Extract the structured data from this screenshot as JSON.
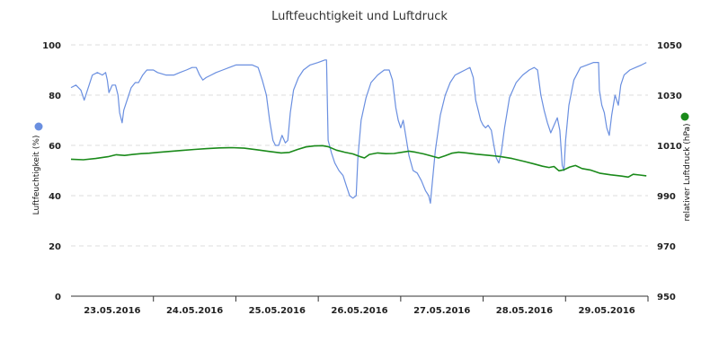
{
  "chart_data": {
    "type": "line",
    "title": "Luftfeuchtigkeit und Luftdruck",
    "x_tick_labels": [
      "23.05.2016",
      "24.05.2016",
      "25.05.2016",
      "26.05.2016",
      "27.05.2016",
      "28.05.2016",
      "29.05.2016"
    ],
    "x_range": [
      0,
      7
    ],
    "y_left": {
      "label": "Luftfeuchtigkeit (%)",
      "range": [
        0,
        100
      ],
      "ticks": [
        "0",
        "20",
        "40",
        "60",
        "80",
        "100"
      ]
    },
    "y_right": {
      "label": "relativer Luftdruck (hPa)",
      "range": [
        950,
        1050
      ],
      "ticks": [
        "950",
        "970",
        "990",
        "1010",
        "1030",
        "1050"
      ]
    },
    "grid": true,
    "series": [
      {
        "axis": "left",
        "color": "#6a8fe0",
        "points": [
          [
            0.0,
            83
          ],
          [
            0.06,
            84
          ],
          [
            0.12,
            82
          ],
          [
            0.16,
            78
          ],
          [
            0.2,
            82
          ],
          [
            0.26,
            88
          ],
          [
            0.32,
            89
          ],
          [
            0.38,
            88
          ],
          [
            0.42,
            89
          ],
          [
            0.44,
            86
          ],
          [
            0.46,
            81
          ],
          [
            0.5,
            84
          ],
          [
            0.54,
            84
          ],
          [
            0.57,
            80
          ],
          [
            0.59,
            73
          ],
          [
            0.62,
            69
          ],
          [
            0.64,
            74
          ],
          [
            0.68,
            78
          ],
          [
            0.73,
            83
          ],
          [
            0.78,
            85
          ],
          [
            0.82,
            85
          ],
          [
            0.87,
            88
          ],
          [
            0.92,
            90
          ],
          [
            1.0,
            90
          ],
          [
            1.05,
            89
          ],
          [
            1.15,
            88
          ],
          [
            1.25,
            88
          ],
          [
            1.32,
            89
          ],
          [
            1.4,
            90
          ],
          [
            1.47,
            91
          ],
          [
            1.52,
            91
          ],
          [
            1.56,
            88
          ],
          [
            1.6,
            86
          ],
          [
            1.64,
            87
          ],
          [
            1.7,
            88
          ],
          [
            1.76,
            89
          ],
          [
            1.84,
            90
          ],
          [
            1.92,
            91
          ],
          [
            2.0,
            92
          ],
          [
            2.1,
            92
          ],
          [
            2.2,
            92
          ],
          [
            2.27,
            91
          ],
          [
            2.32,
            86
          ],
          [
            2.37,
            80
          ],
          [
            2.41,
            70
          ],
          [
            2.45,
            62
          ],
          [
            2.48,
            60
          ],
          [
            2.52,
            60
          ],
          [
            2.56,
            64
          ],
          [
            2.6,
            61
          ],
          [
            2.63,
            62
          ],
          [
            2.66,
            73
          ],
          [
            2.7,
            82
          ],
          [
            2.76,
            87
          ],
          [
            2.82,
            90
          ],
          [
            2.9,
            92
          ],
          [
            3.0,
            93
          ],
          [
            3.08,
            94
          ],
          [
            3.1,
            94
          ],
          [
            3.12,
            62
          ],
          [
            3.16,
            57
          ],
          [
            3.2,
            53
          ],
          [
            3.25,
            50
          ],
          [
            3.3,
            48
          ],
          [
            3.34,
            44
          ],
          [
            3.38,
            40
          ],
          [
            3.42,
            39
          ],
          [
            3.46,
            40
          ],
          [
            3.48,
            55
          ],
          [
            3.52,
            70
          ],
          [
            3.58,
            79
          ],
          [
            3.64,
            85
          ],
          [
            3.72,
            88
          ],
          [
            3.8,
            90
          ],
          [
            3.86,
            90
          ],
          [
            3.9,
            86
          ],
          [
            3.94,
            75
          ],
          [
            3.97,
            70
          ],
          [
            4.0,
            67
          ],
          [
            4.03,
            70
          ],
          [
            4.06,
            64
          ],
          [
            4.1,
            56
          ],
          [
            4.15,
            50
          ],
          [
            4.2,
            49
          ],
          [
            4.25,
            46
          ],
          [
            4.3,
            42
          ],
          [
            4.34,
            40
          ],
          [
            4.36,
            37
          ],
          [
            4.38,
            44
          ],
          [
            4.42,
            58
          ],
          [
            4.48,
            72
          ],
          [
            4.54,
            80
          ],
          [
            4.6,
            85
          ],
          [
            4.66,
            88
          ],
          [
            4.72,
            89
          ],
          [
            4.78,
            90
          ],
          [
            4.84,
            91
          ],
          [
            4.88,
            87
          ],
          [
            4.91,
            78
          ],
          [
            4.94,
            74
          ],
          [
            4.97,
            70
          ],
          [
            5.0,
            68
          ],
          [
            5.03,
            67
          ],
          [
            5.06,
            68
          ],
          [
            5.1,
            66
          ],
          [
            5.13,
            60
          ],
          [
            5.16,
            55
          ],
          [
            5.19,
            53
          ],
          [
            5.22,
            57
          ],
          [
            5.26,
            67
          ],
          [
            5.32,
            79
          ],
          [
            5.4,
            85
          ],
          [
            5.48,
            88
          ],
          [
            5.56,
            90
          ],
          [
            5.62,
            91
          ],
          [
            5.66,
            90
          ],
          [
            5.7,
            80
          ],
          [
            5.74,
            74
          ],
          [
            5.78,
            69
          ],
          [
            5.82,
            65
          ],
          [
            5.86,
            68
          ],
          [
            5.9,
            71
          ],
          [
            5.93,
            66
          ],
          [
            5.96,
            52
          ],
          [
            5.98,
            50
          ],
          [
            6.0,
            62
          ],
          [
            6.04,
            76
          ],
          [
            6.1,
            86
          ],
          [
            6.18,
            91
          ],
          [
            6.26,
            92
          ],
          [
            6.34,
            93
          ],
          [
            6.4,
            93
          ],
          [
            6.41,
            82
          ],
          [
            6.44,
            76
          ],
          [
            6.47,
            73
          ],
          [
            6.5,
            67
          ],
          [
            6.53,
            64
          ],
          [
            6.56,
            72
          ],
          [
            6.6,
            80
          ],
          [
            6.64,
            76
          ],
          [
            6.67,
            84
          ],
          [
            6.71,
            88
          ],
          [
            6.78,
            90
          ],
          [
            6.85,
            91
          ],
          [
            6.92,
            92
          ],
          [
            6.98,
            93
          ]
        ]
      },
      {
        "axis": "right",
        "color": "#1a8a1a",
        "points": [
          [
            0.0,
            1004.5
          ],
          [
            0.15,
            1004.3
          ],
          [
            0.3,
            1004.8
          ],
          [
            0.45,
            1005.5
          ],
          [
            0.55,
            1006.3
          ],
          [
            0.65,
            1006.0
          ],
          [
            0.75,
            1006.4
          ],
          [
            0.85,
            1006.7
          ],
          [
            0.95,
            1006.9
          ],
          [
            1.05,
            1007.2
          ],
          [
            1.2,
            1007.6
          ],
          [
            1.35,
            1008.0
          ],
          [
            1.5,
            1008.4
          ],
          [
            1.65,
            1008.7
          ],
          [
            1.8,
            1009.0
          ],
          [
            1.95,
            1009.1
          ],
          [
            2.1,
            1008.9
          ],
          [
            2.25,
            1008.3
          ],
          [
            2.4,
            1007.6
          ],
          [
            2.55,
            1007.0
          ],
          [
            2.65,
            1007.2
          ],
          [
            2.75,
            1008.4
          ],
          [
            2.85,
            1009.4
          ],
          [
            2.95,
            1009.8
          ],
          [
            3.05,
            1009.9
          ],
          [
            3.12,
            1009.5
          ],
          [
            3.22,
            1008.1
          ],
          [
            3.32,
            1007.3
          ],
          [
            3.42,
            1006.6
          ],
          [
            3.5,
            1005.6
          ],
          [
            3.56,
            1005.0
          ],
          [
            3.62,
            1006.4
          ],
          [
            3.72,
            1007.0
          ],
          [
            3.82,
            1006.7
          ],
          [
            3.92,
            1006.8
          ],
          [
            4.02,
            1007.3
          ],
          [
            4.1,
            1007.7
          ],
          [
            4.18,
            1007.3
          ],
          [
            4.28,
            1006.6
          ],
          [
            4.38,
            1005.7
          ],
          [
            4.46,
            1005.0
          ],
          [
            4.54,
            1005.9
          ],
          [
            4.62,
            1006.9
          ],
          [
            4.7,
            1007.3
          ],
          [
            4.8,
            1007.0
          ],
          [
            4.92,
            1006.5
          ],
          [
            5.05,
            1006.1
          ],
          [
            5.2,
            1005.6
          ],
          [
            5.35,
            1004.8
          ],
          [
            5.5,
            1003.6
          ],
          [
            5.62,
            1002.6
          ],
          [
            5.72,
            1001.7
          ],
          [
            5.8,
            1001.2
          ],
          [
            5.86,
            1001.6
          ],
          [
            5.92,
            999.9
          ],
          [
            5.98,
            1000.3
          ],
          [
            6.05,
            1001.4
          ],
          [
            6.12,
            1002.0
          ],
          [
            6.2,
            1000.8
          ],
          [
            6.3,
            1000.2
          ],
          [
            6.42,
            998.9
          ],
          [
            6.55,
            998.3
          ],
          [
            6.68,
            997.8
          ],
          [
            6.76,
            997.4
          ],
          [
            6.82,
            998.5
          ],
          [
            6.9,
            998.2
          ],
          [
            6.98,
            997.9
          ]
        ]
      }
    ]
  }
}
